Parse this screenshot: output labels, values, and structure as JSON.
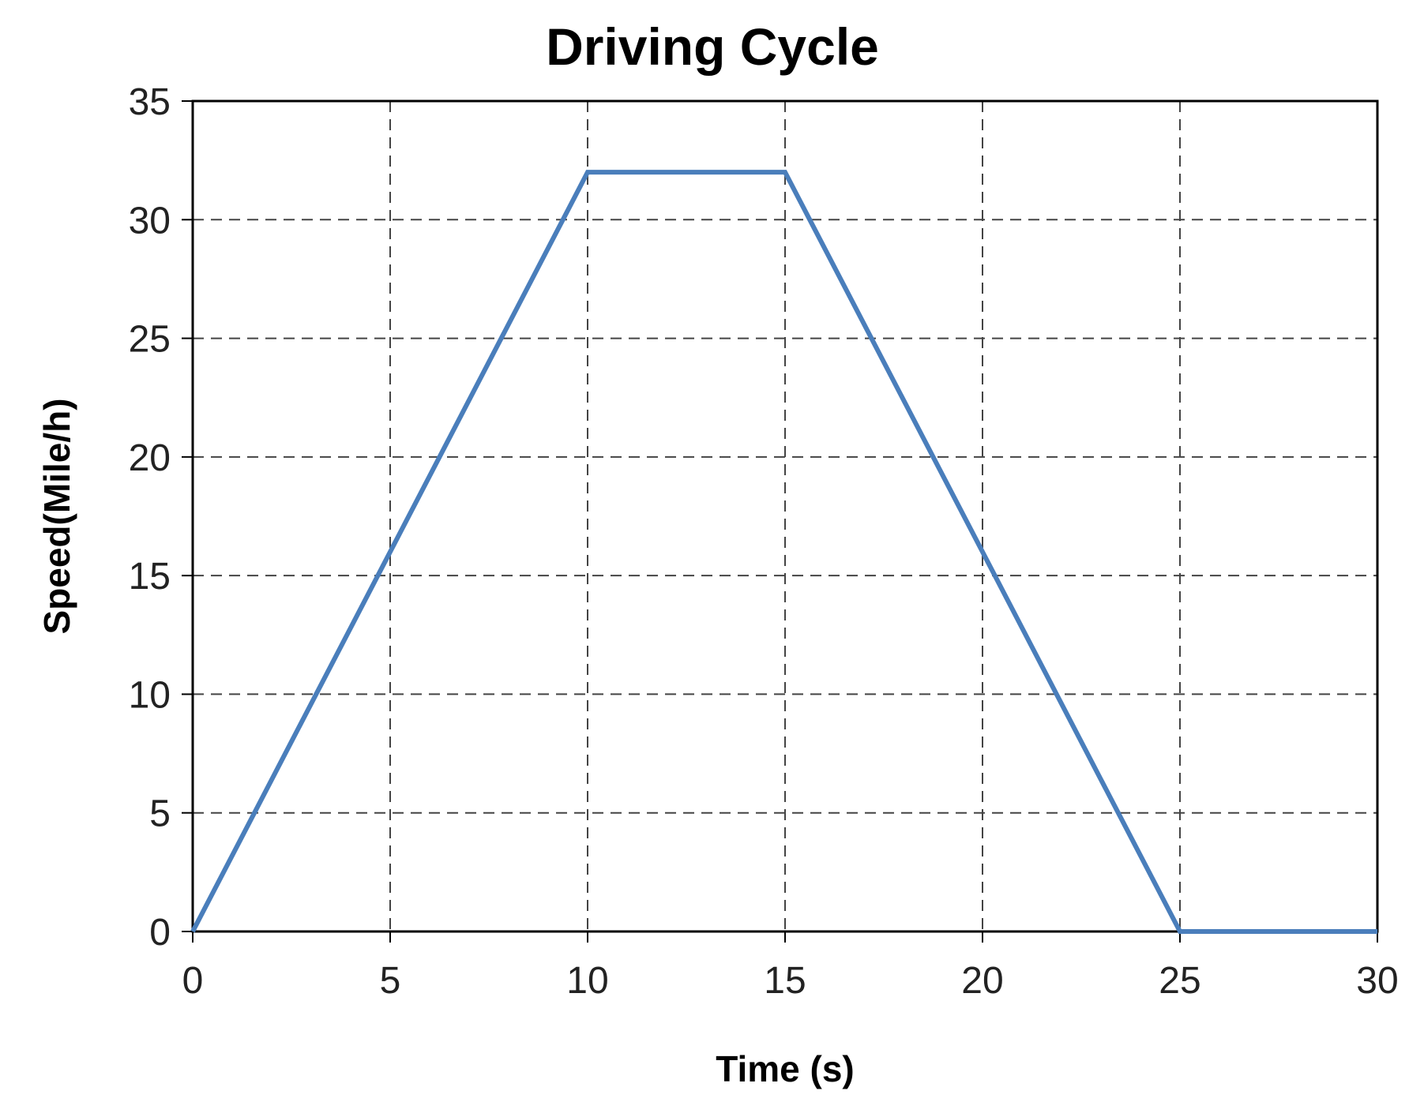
{
  "chart_data": {
    "type": "line",
    "title": "Driving Cycle",
    "xlabel": "Time (s)",
    "ylabel": "Speed(Mile/h)",
    "xlim": [
      0,
      30
    ],
    "ylim": [
      0,
      35
    ],
    "x_ticks": [
      0,
      5,
      10,
      15,
      20,
      25,
      30
    ],
    "y_ticks": [
      0,
      5,
      10,
      15,
      20,
      25,
      30,
      35
    ],
    "grid": true,
    "legend": "none",
    "series": [
      {
        "name": "Speed",
        "color": "#4a7ebb",
        "x": [
          0,
          10,
          15,
          25,
          30
        ],
        "y": [
          0,
          32,
          32,
          0,
          0
        ]
      }
    ]
  }
}
